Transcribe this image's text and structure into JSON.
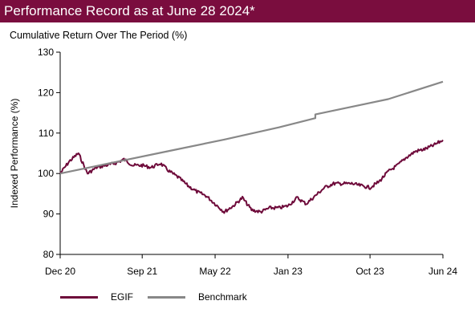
{
  "header": {
    "title": "Performance Record as at June 28 2024*"
  },
  "chart_data": {
    "type": "line",
    "title": "Cumulative Return Over The Period (%)",
    "xlabel": "",
    "ylabel": "Indexed Performance (%)",
    "ylim": [
      80,
      130
    ],
    "yticks": [
      "80",
      "90",
      "100",
      "110",
      "120",
      "130"
    ],
    "xticks": [
      "Dec 20",
      "Sep 21",
      "May 22",
      "Jan 23",
      "Oct 23",
      "Jun 24"
    ],
    "xlim": [
      "Dec 20",
      "Jun 24"
    ],
    "grid": false,
    "legend_position": "bottom-left",
    "series": [
      {
        "name": "EGIF",
        "color": "#6e0a3a",
        "points": [
          [
            "Dec 20",
            100
          ],
          [
            "Jan 21",
            103
          ],
          [
            "Feb 21",
            105
          ],
          [
            "Mar 21",
            100
          ],
          [
            "Apr 21",
            101.5
          ],
          [
            "May 21",
            102
          ],
          [
            "Jun 21",
            102.5
          ],
          [
            "Jul 21",
            103.5
          ],
          [
            "Aug 21",
            102
          ],
          [
            "Sep 21",
            102
          ],
          [
            "Oct 21",
            101.5
          ],
          [
            "Nov 21",
            102.5
          ],
          [
            "Dec 21",
            100.5
          ],
          [
            "Jan 22",
            99
          ],
          [
            "Feb 22",
            97
          ],
          [
            "Mar 22",
            95.5
          ],
          [
            "Apr 22",
            94.5
          ],
          [
            "May 22",
            92.5
          ],
          [
            "Jun 22",
            90.5
          ],
          [
            "Jul 22",
            92
          ],
          [
            "Aug 22",
            94
          ],
          [
            "Sep 22",
            91
          ],
          [
            "Oct 22",
            90.5
          ],
          [
            "Nov 22",
            91.5
          ],
          [
            "Dec 22",
            91.5
          ],
          [
            "Jan 23",
            92
          ],
          [
            "Feb 23",
            94
          ],
          [
            "Mar 23",
            92.5
          ],
          [
            "Apr 23",
            94.5
          ],
          [
            "May 23",
            96.5
          ],
          [
            "Jun 23",
            97.5
          ],
          [
            "Jul 23",
            97.5
          ],
          [
            "Aug 23",
            97.5
          ],
          [
            "Sep 23",
            97
          ],
          [
            "Oct 23",
            96.5
          ],
          [
            "Nov 23",
            98
          ],
          [
            "Dec 23",
            100.5
          ],
          [
            "Jan 24",
            102
          ],
          [
            "Feb 24",
            104
          ],
          [
            "Mar 24",
            105.5
          ],
          [
            "Apr 24",
            106
          ],
          [
            "May 24",
            107
          ],
          [
            "Jun 24",
            108.3
          ]
        ]
      },
      {
        "name": "Benchmark",
        "color": "#888888",
        "points": [
          [
            "Dec 20",
            100
          ],
          [
            "Jun 21",
            102.8
          ],
          [
            "Dec 21",
            105.6
          ],
          [
            "Jun 22",
            108.4
          ],
          [
            "Dec 22",
            111.4
          ],
          [
            "Apr 23",
            113.7
          ],
          [
            "Apr 23",
            114.6
          ],
          [
            "Dec 23",
            118.4
          ],
          [
            "Jun 24",
            122.7
          ]
        ]
      }
    ]
  }
}
